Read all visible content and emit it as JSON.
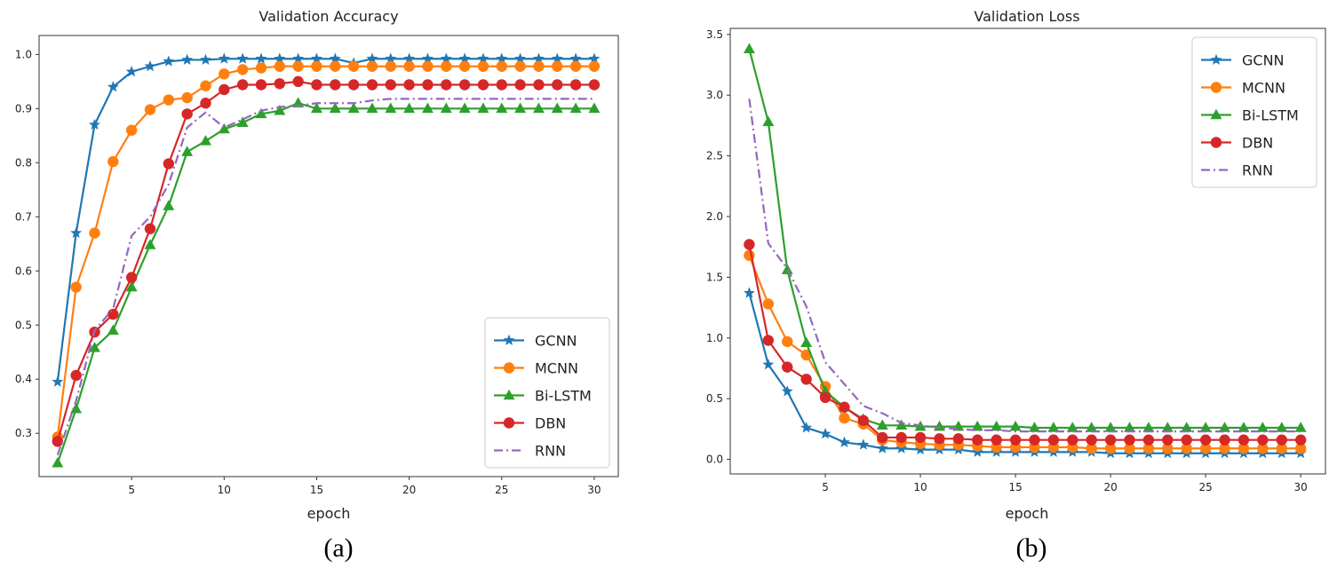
{
  "chart_data": [
    {
      "type": "line",
      "title": "Validation Accuracy",
      "xlabel": "epoch",
      "ylabel": "",
      "caption": "(a)",
      "xlim": [
        0,
        31.3
      ],
      "ylim": [
        0.22,
        1.035
      ],
      "xticks": [
        5,
        10,
        15,
        20,
        25,
        30
      ],
      "yticks": [
        0.3,
        0.4,
        0.5,
        0.6,
        0.7,
        0.8,
        0.9,
        1.0
      ],
      "ytick_labels": [
        "0.3",
        "0.4",
        "0.5",
        "0.6",
        "0.7",
        "0.8",
        "0.9",
        "1.0"
      ],
      "legend_loc": "lower-right",
      "x": [
        1,
        2,
        3,
        4,
        5,
        6,
        7,
        8,
        9,
        10,
        11,
        12,
        13,
        14,
        15,
        16,
        17,
        18,
        19,
        20,
        21,
        22,
        23,
        24,
        25,
        26,
        27,
        28,
        29,
        30
      ],
      "series": [
        {
          "name": "GCNN",
          "color": "#1f77b4",
          "marker": "star",
          "dash": "solid",
          "values": [
            0.395,
            0.67,
            0.87,
            0.94,
            0.968,
            0.978,
            0.987,
            0.99,
            0.99,
            0.992,
            0.992,
            0.992,
            0.992,
            0.992,
            0.992,
            0.992,
            0.984,
            0.992,
            0.992,
            0.992,
            0.992,
            0.992,
            0.992,
            0.992,
            0.992,
            0.992,
            0.992,
            0.992,
            0.992,
            0.992
          ]
        },
        {
          "name": "MCNN",
          "color": "#ff7f0e",
          "marker": "circle",
          "dash": "solid",
          "values": [
            0.293,
            0.57,
            0.67,
            0.802,
            0.86,
            0.898,
            0.916,
            0.92,
            0.942,
            0.964,
            0.972,
            0.975,
            0.978,
            0.978,
            0.978,
            0.978,
            0.978,
            0.978,
            0.978,
            0.978,
            0.978,
            0.978,
            0.978,
            0.978,
            0.978,
            0.978,
            0.978,
            0.978,
            0.978,
            0.978
          ]
        },
        {
          "name": "Bi-LSTM",
          "color": "#2ca02c",
          "marker": "triangle",
          "dash": "solid",
          "values": [
            0.245,
            0.345,
            0.458,
            0.49,
            0.57,
            0.648,
            0.72,
            0.82,
            0.84,
            0.862,
            0.874,
            0.89,
            0.896,
            0.91,
            0.9,
            0.9,
            0.9,
            0.9,
            0.9,
            0.9,
            0.9,
            0.9,
            0.9,
            0.9,
            0.9,
            0.9,
            0.9,
            0.9,
            0.9,
            0.9
          ]
        },
        {
          "name": "DBN",
          "color": "#d62728",
          "marker": "circle",
          "dash": "solid",
          "values": [
            0.285,
            0.407,
            0.487,
            0.52,
            0.588,
            0.678,
            0.798,
            0.89,
            0.91,
            0.935,
            0.944,
            0.944,
            0.946,
            0.95,
            0.944,
            0.944,
            0.944,
            0.944,
            0.944,
            0.944,
            0.944,
            0.944,
            0.944,
            0.944,
            0.944,
            0.944,
            0.944,
            0.944,
            0.944,
            0.944
          ]
        },
        {
          "name": "RNN",
          "color": "#9467bd",
          "marker": "none",
          "dash": "dashdot",
          "values": [
            0.26,
            0.36,
            0.49,
            0.53,
            0.665,
            0.7,
            0.76,
            0.865,
            0.893,
            0.865,
            0.88,
            0.896,
            0.903,
            0.905,
            0.91,
            0.91,
            0.91,
            0.915,
            0.918,
            0.918,
            0.918,
            0.918,
            0.918,
            0.918,
            0.918,
            0.918,
            0.918,
            0.918,
            0.918,
            0.918
          ]
        }
      ]
    },
    {
      "type": "line",
      "title": "Validation Loss",
      "xlabel": "epoch",
      "ylabel": "",
      "caption": "(b)",
      "xlim": [
        0,
        31.3
      ],
      "ylim": [
        -0.12,
        3.55
      ],
      "xticks": [
        5,
        10,
        15,
        20,
        25,
        30
      ],
      "yticks": [
        0.0,
        0.5,
        1.0,
        1.5,
        2.0,
        2.5,
        3.0,
        3.5
      ],
      "ytick_labels": [
        "0.0",
        "0.5",
        "1.0",
        "1.5",
        "2.0",
        "2.5",
        "3.0",
        "3.5"
      ],
      "legend_loc": "upper-right",
      "x": [
        1,
        2,
        3,
        4,
        5,
        6,
        7,
        8,
        9,
        10,
        11,
        12,
        13,
        14,
        15,
        16,
        17,
        18,
        19,
        20,
        21,
        22,
        23,
        24,
        25,
        26,
        27,
        28,
        29,
        30
      ],
      "series": [
        {
          "name": "GCNN",
          "color": "#1f77b4",
          "marker": "star",
          "dash": "solid",
          "values": [
            1.37,
            0.78,
            0.56,
            0.26,
            0.21,
            0.14,
            0.12,
            0.09,
            0.09,
            0.08,
            0.08,
            0.08,
            0.06,
            0.06,
            0.06,
            0.06,
            0.06,
            0.06,
            0.06,
            0.05,
            0.05,
            0.05,
            0.05,
            0.05,
            0.05,
            0.05,
            0.05,
            0.05,
            0.05,
            0.05
          ]
        },
        {
          "name": "MCNN",
          "color": "#ff7f0e",
          "marker": "circle",
          "dash": "solid",
          "values": [
            1.68,
            1.28,
            0.97,
            0.86,
            0.6,
            0.34,
            0.29,
            0.16,
            0.14,
            0.13,
            0.12,
            0.12,
            0.11,
            0.1,
            0.1,
            0.1,
            0.1,
            0.1,
            0.09,
            0.09,
            0.09,
            0.09,
            0.09,
            0.09,
            0.09,
            0.09,
            0.09,
            0.09,
            0.09,
            0.09
          ]
        },
        {
          "name": "Bi-LSTM",
          "color": "#2ca02c",
          "marker": "triangle",
          "dash": "solid",
          "values": [
            3.38,
            2.78,
            1.56,
            0.96,
            0.56,
            0.43,
            0.33,
            0.28,
            0.28,
            0.27,
            0.27,
            0.27,
            0.27,
            0.27,
            0.27,
            0.26,
            0.26,
            0.26,
            0.26,
            0.26,
            0.26,
            0.26,
            0.26,
            0.26,
            0.26,
            0.26,
            0.26,
            0.26,
            0.26,
            0.26
          ]
        },
        {
          "name": "DBN",
          "color": "#d62728",
          "marker": "circle",
          "dash": "solid",
          "values": [
            1.77,
            0.98,
            0.76,
            0.66,
            0.51,
            0.43,
            0.32,
            0.18,
            0.18,
            0.18,
            0.17,
            0.17,
            0.16,
            0.16,
            0.16,
            0.16,
            0.16,
            0.16,
            0.16,
            0.16,
            0.16,
            0.16,
            0.16,
            0.16,
            0.16,
            0.16,
            0.16,
            0.16,
            0.16,
            0.16
          ]
        },
        {
          "name": "RNN",
          "color": "#9467bd",
          "marker": "none",
          "dash": "dashdot",
          "values": [
            2.97,
            1.78,
            1.57,
            1.26,
            0.8,
            0.62,
            0.44,
            0.38,
            0.3,
            0.28,
            0.26,
            0.25,
            0.24,
            0.24,
            0.23,
            0.23,
            0.23,
            0.23,
            0.23,
            0.23,
            0.23,
            0.23,
            0.23,
            0.23,
            0.23,
            0.23,
            0.23,
            0.23,
            0.23,
            0.23
          ]
        }
      ]
    }
  ]
}
